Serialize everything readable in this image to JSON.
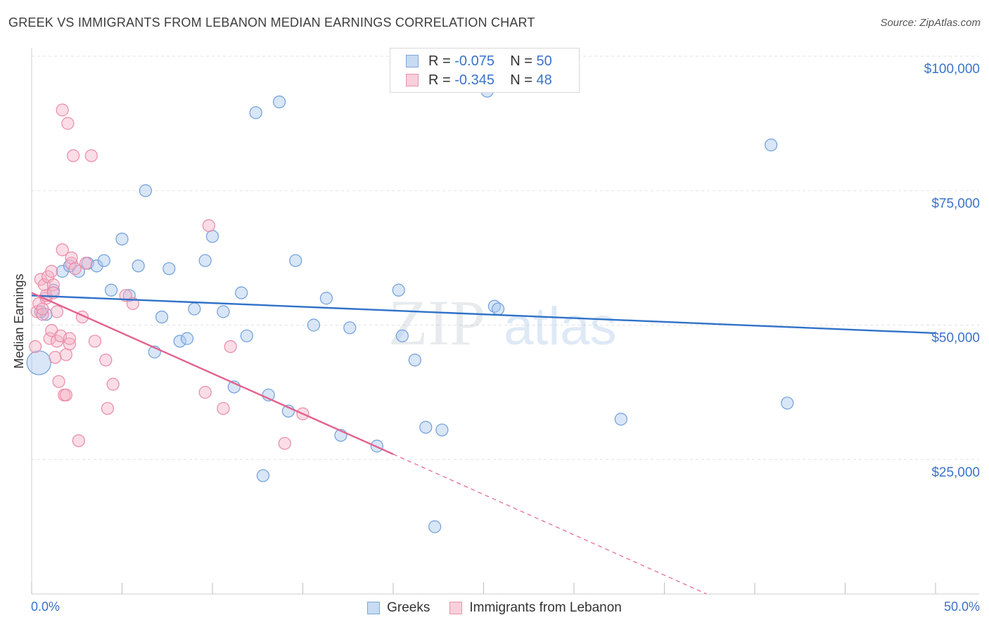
{
  "title": "GREEK VS IMMIGRANTS FROM LEBANON MEDIAN EARNINGS CORRELATION CHART",
  "source": "Source: ZipAtlas.com",
  "watermark": {
    "zip": "ZIP",
    "atlas": "atlas"
  },
  "legend": {
    "rows": [
      {
        "r_label": "R = ",
        "r_value": "-0.075",
        "n_label": "N = ",
        "n_value": "50"
      },
      {
        "r_label": "R = ",
        "r_value": "-0.345",
        "n_label": "N = ",
        "n_value": "48"
      }
    ]
  },
  "bottom_legend": [
    "Greeks",
    "Immigrants from Lebanon"
  ],
  "colors": {
    "blue_fill": "#a9c8ee",
    "blue_stroke": "#6f9fdb",
    "blue_line": "#2f72c9",
    "pink_fill": "#f5b3c8",
    "pink_stroke": "#ea8aa8",
    "pink_line": "#e2628f",
    "grid": "#e2e2e2",
    "axis_text": "#3b73c9"
  },
  "chart_data": {
    "type": "scatter",
    "title": "GREEK VS IMMIGRANTS FROM LEBANON MEDIAN EARNINGS CORRELATION CHART",
    "xlabel": "",
    "ylabel": "Median Earnings",
    "xlim": [
      0,
      50
    ],
    "ylim": [
      0,
      100000
    ],
    "x_tick_labels": [
      "0.0%",
      "50.0%"
    ],
    "y_ticks": [
      25000,
      50000,
      75000,
      100000
    ],
    "y_tick_labels": [
      "$25,000",
      "$50,000",
      "$75,000",
      "$100,000"
    ],
    "grid": true,
    "legend_position": "top-center",
    "series": [
      {
        "name": "Greeks",
        "color": "#a9c8ee",
        "trend": {
          "x": [
            0,
            50
          ],
          "y": [
            55500,
            48500
          ],
          "solid_to": 50
        },
        "points": [
          {
            "x": 0.4,
            "y": 43000,
            "big": true
          },
          {
            "x": 0.8,
            "y": 52000
          },
          {
            "x": 1.2,
            "y": 56500
          },
          {
            "x": 1.7,
            "y": 60000
          },
          {
            "x": 2.1,
            "y": 61000
          },
          {
            "x": 2.6,
            "y": 60000
          },
          {
            "x": 3.1,
            "y": 61500
          },
          {
            "x": 3.6,
            "y": 61000
          },
          {
            "x": 4.0,
            "y": 62000
          },
          {
            "x": 4.4,
            "y": 56500
          },
          {
            "x": 5.0,
            "y": 66000
          },
          {
            "x": 5.4,
            "y": 55500
          },
          {
            "x": 5.9,
            "y": 61000
          },
          {
            "x": 6.3,
            "y": 75000
          },
          {
            "x": 6.8,
            "y": 45000
          },
          {
            "x": 7.2,
            "y": 51500
          },
          {
            "x": 7.6,
            "y": 60500
          },
          {
            "x": 8.2,
            "y": 47000
          },
          {
            "x": 8.6,
            "y": 47500
          },
          {
            "x": 9.0,
            "y": 53000
          },
          {
            "x": 9.6,
            "y": 62000
          },
          {
            "x": 10.0,
            "y": 66500
          },
          {
            "x": 10.6,
            "y": 52500
          },
          {
            "x": 11.2,
            "y": 38500
          },
          {
            "x": 11.6,
            "y": 56000
          },
          {
            "x": 11.9,
            "y": 48000
          },
          {
            "x": 12.4,
            "y": 89500
          },
          {
            "x": 12.8,
            "y": 22000
          },
          {
            "x": 13.1,
            "y": 37000
          },
          {
            "x": 13.7,
            "y": 91500
          },
          {
            "x": 14.2,
            "y": 34000
          },
          {
            "x": 14.6,
            "y": 62000
          },
          {
            "x": 15.6,
            "y": 50000
          },
          {
            "x": 16.3,
            "y": 55000
          },
          {
            "x": 17.1,
            "y": 29500
          },
          {
            "x": 17.6,
            "y": 49500
          },
          {
            "x": 19.1,
            "y": 27500
          },
          {
            "x": 20.3,
            "y": 56500
          },
          {
            "x": 20.5,
            "y": 48000
          },
          {
            "x": 21.2,
            "y": 43500
          },
          {
            "x": 21.8,
            "y": 31000
          },
          {
            "x": 22.3,
            "y": 12500
          },
          {
            "x": 22.7,
            "y": 30500
          },
          {
            "x": 25.2,
            "y": 93500
          },
          {
            "x": 25.6,
            "y": 53500
          },
          {
            "x": 25.8,
            "y": 53000
          },
          {
            "x": 32.6,
            "y": 32500
          },
          {
            "x": 40.9,
            "y": 83500
          },
          {
            "x": 41.8,
            "y": 35500
          },
          {
            "x": 0.5,
            "y": 52500
          }
        ]
      },
      {
        "name": "Immigrants from Lebanon",
        "color": "#f5b3c8",
        "trend": {
          "x": [
            0,
            50
          ],
          "y": [
            56000,
            -19000
          ],
          "solid_to": 20
        },
        "points": [
          {
            "x": 0.2,
            "y": 46000
          },
          {
            "x": 0.3,
            "y": 52500
          },
          {
            "x": 0.4,
            "y": 54000
          },
          {
            "x": 0.5,
            "y": 58500
          },
          {
            "x": 0.6,
            "y": 52000
          },
          {
            "x": 0.7,
            "y": 57500
          },
          {
            "x": 0.8,
            "y": 55000
          },
          {
            "x": 0.9,
            "y": 59000
          },
          {
            "x": 1.0,
            "y": 47500
          },
          {
            "x": 1.1,
            "y": 49000
          },
          {
            "x": 1.1,
            "y": 60000
          },
          {
            "x": 1.2,
            "y": 57500
          },
          {
            "x": 1.3,
            "y": 44000
          },
          {
            "x": 1.4,
            "y": 52500
          },
          {
            "x": 1.4,
            "y": 47000
          },
          {
            "x": 1.5,
            "y": 39500
          },
          {
            "x": 1.6,
            "y": 48000
          },
          {
            "x": 1.7,
            "y": 64000
          },
          {
            "x": 1.7,
            "y": 90000
          },
          {
            "x": 1.8,
            "y": 37000
          },
          {
            "x": 1.9,
            "y": 37000
          },
          {
            "x": 1.9,
            "y": 44500
          },
          {
            "x": 2.0,
            "y": 87500
          },
          {
            "x": 2.1,
            "y": 46500
          },
          {
            "x": 2.1,
            "y": 47500
          },
          {
            "x": 2.2,
            "y": 61500
          },
          {
            "x": 2.2,
            "y": 62500
          },
          {
            "x": 2.3,
            "y": 81500
          },
          {
            "x": 2.4,
            "y": 60500
          },
          {
            "x": 2.6,
            "y": 28500
          },
          {
            "x": 2.8,
            "y": 51500
          },
          {
            "x": 3.3,
            "y": 81500
          },
          {
            "x": 3.5,
            "y": 47000
          },
          {
            "x": 4.1,
            "y": 43500
          },
          {
            "x": 4.2,
            "y": 34500
          },
          {
            "x": 4.5,
            "y": 39000
          },
          {
            "x": 5.2,
            "y": 55500
          },
          {
            "x": 5.6,
            "y": 54000
          },
          {
            "x": 9.6,
            "y": 37500
          },
          {
            "x": 9.8,
            "y": 68500
          },
          {
            "x": 10.6,
            "y": 34500
          },
          {
            "x": 11.0,
            "y": 46000
          },
          {
            "x": 14.0,
            "y": 28000
          },
          {
            "x": 15.0,
            "y": 33500
          },
          {
            "x": 0.6,
            "y": 53000
          },
          {
            "x": 0.8,
            "y": 55500
          },
          {
            "x": 3.0,
            "y": 61500
          },
          {
            "x": 1.2,
            "y": 56000
          }
        ]
      }
    ]
  }
}
